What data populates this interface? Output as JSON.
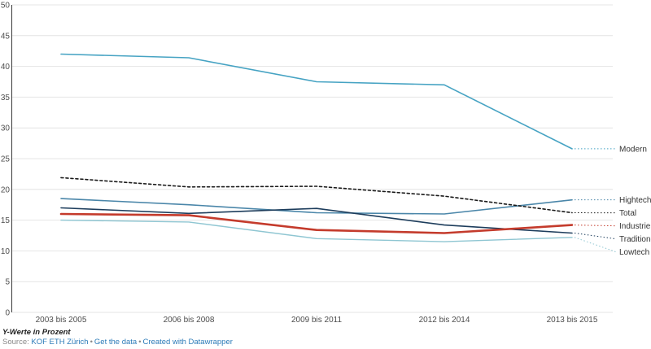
{
  "chart_data": {
    "type": "line",
    "categories": [
      "2003 bis 2005",
      "2006 bis 2008",
      "2009 bis 2011",
      "2012 bis 2014",
      "2013 bis 2015"
    ],
    "series": [
      {
        "name": "Modern",
        "color": "#46a3c3",
        "style": "solid",
        "width": 1.6,
        "values": [
          42.0,
          41.4,
          37.5,
          37.0,
          26.6
        ]
      },
      {
        "name": "Hightech",
        "color": "#4a86a9",
        "style": "solid",
        "width": 1.6,
        "values": [
          18.5,
          17.5,
          16.2,
          16.0,
          18.3
        ]
      },
      {
        "name": "Total",
        "color": "#1a1a1a",
        "style": "dotted",
        "width": 1.6,
        "values": [
          21.9,
          20.4,
          20.5,
          18.9,
          16.2
        ]
      },
      {
        "name": "Traditionell",
        "color": "#1d3d5c",
        "style": "solid",
        "width": 1.6,
        "values": [
          17.0,
          16.1,
          16.9,
          14.2,
          12.9
        ]
      },
      {
        "name": "Lowtech",
        "color": "#8fc6d2",
        "style": "solid",
        "width": 1.4,
        "values": [
          15.0,
          14.7,
          12.0,
          11.5,
          12.2
        ]
      },
      {
        "name": "Industrie",
        "color": "#c43b2c",
        "style": "solid",
        "width": 2.6,
        "values": [
          16.0,
          15.8,
          13.4,
          12.9,
          14.2
        ]
      }
    ],
    "ylim": [
      0,
      50
    ],
    "ytick_step": 5,
    "yticks": [
      0,
      5,
      10,
      15,
      20,
      25,
      30,
      35,
      40,
      45,
      50
    ],
    "grid": "horizontal",
    "legend_position": "right-edge-labels",
    "axis_color": "#3a3a3a",
    "grid_color": "#e4e4e4",
    "tick_label_color": "#4d4d4d",
    "series_label_color": "#333333"
  },
  "footer": {
    "note": "Y-Werte in Prozent",
    "source_prefix": "Source: ",
    "source_link": "KOF ETH Zürich",
    "separator": "•",
    "get_data_link": "Get the data",
    "created_link": "Created with Datawrapper"
  }
}
